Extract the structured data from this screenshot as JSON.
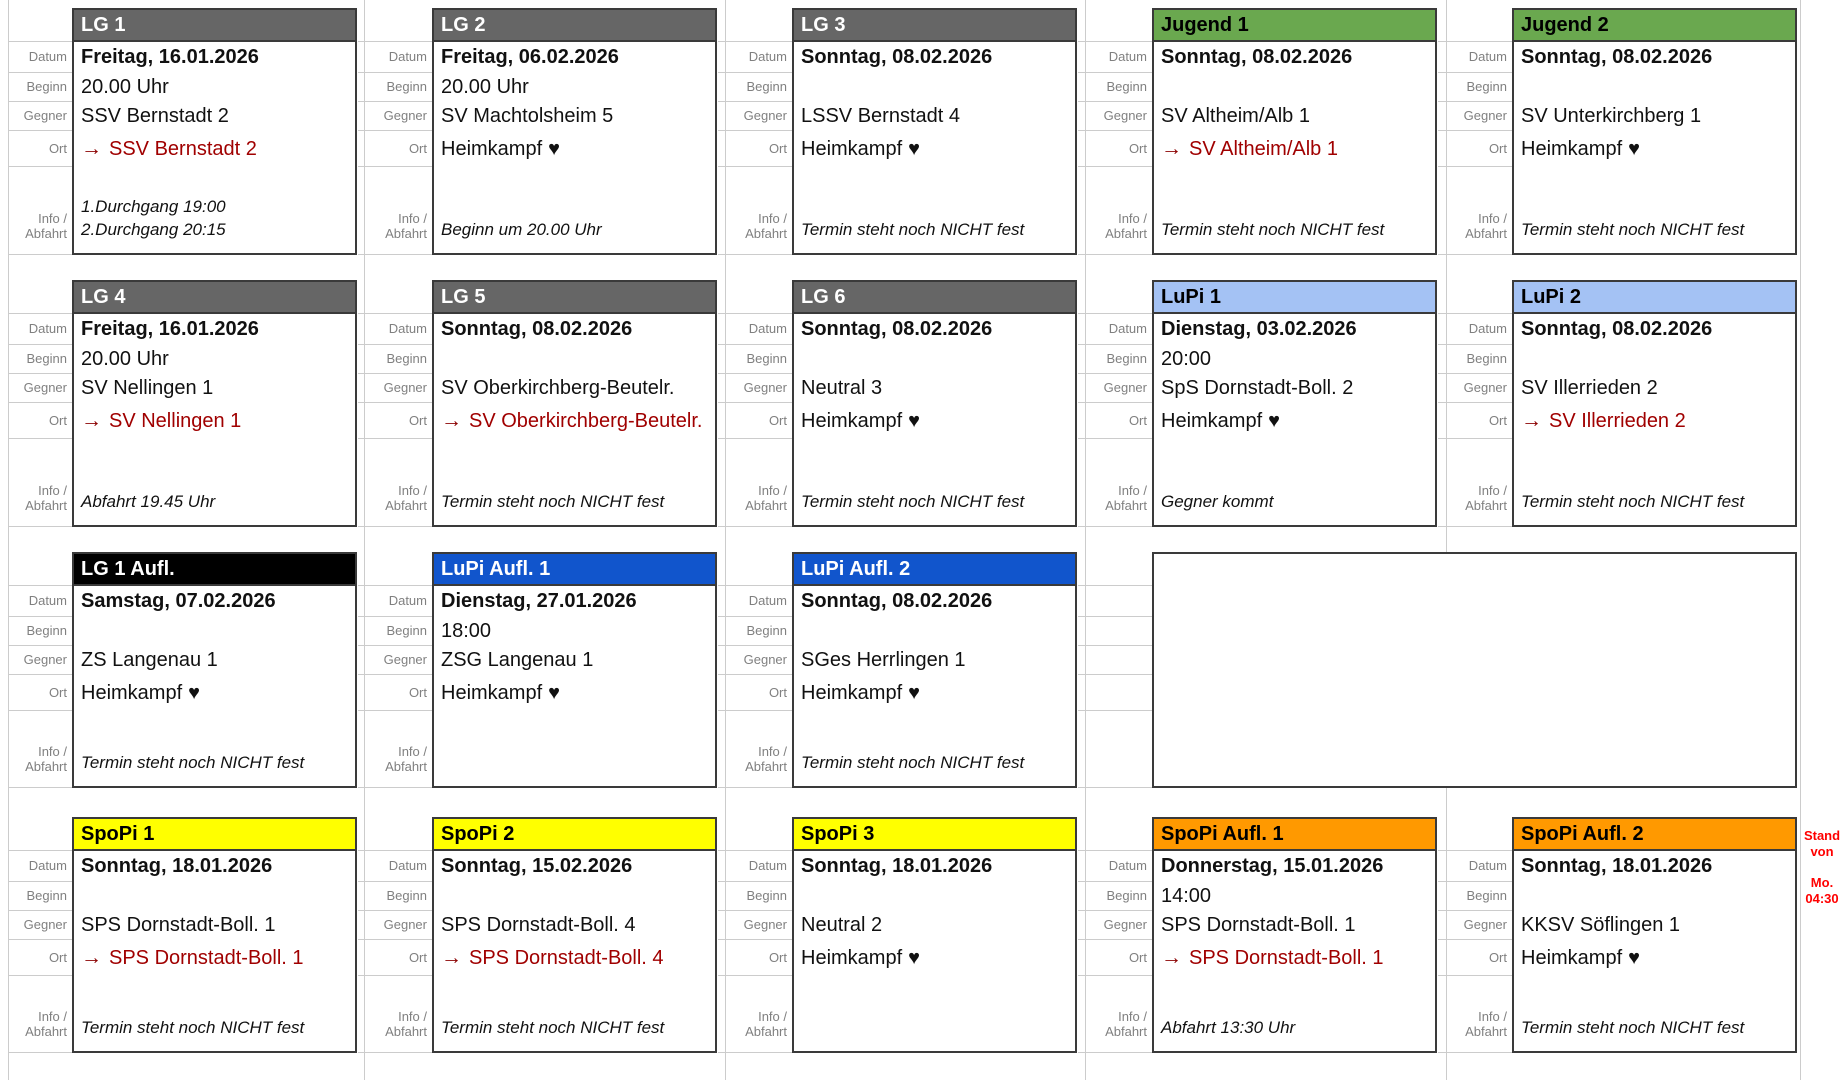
{
  "icons": {
    "arrow_right": "→",
    "heart": "♥"
  },
  "colors": {
    "gray": "#666666",
    "green": "#6aa84f",
    "lightblue": "#a4c2f4",
    "blue": "#1155cc",
    "black": "#000000",
    "yellow": "#ffff00",
    "orange": "#ff9900",
    "away_red": "#a00000",
    "stand_red": "#ff0000"
  },
  "gutter_labels": {
    "datum": "Datum",
    "beginn": "Beginn",
    "gegner": "Gegner",
    "ort": "Ort",
    "info_line1": "Info /",
    "info_line2": "Abfahrt"
  },
  "home_text": "Heimkampf",
  "stand_note": {
    "line1": "Stand von",
    "line2": "Mo. 04:30"
  },
  "cards": [
    {
      "col": 0,
      "row": 0,
      "title": "LG 1",
      "header_bg": "gray",
      "header_fg": "#ffffff",
      "datum": "Freitag, 16.01.2026",
      "beginn": "20.00 Uhr",
      "gegner": "SSV Bernstadt 2",
      "ort_type": "away",
      "ort_text": "SSV Bernstadt 2",
      "info": [
        "1.Durchgang 19:00",
        "2.Durchgang 20:15"
      ]
    },
    {
      "col": 1,
      "row": 0,
      "title": "LG 2",
      "header_bg": "gray",
      "header_fg": "#ffffff",
      "datum": "Freitag, 06.02.2026",
      "beginn": "20.00 Uhr",
      "gegner": "SV Machtolsheim 5",
      "ort_type": "home",
      "ort_text": "Heimkampf",
      "info": [
        "Beginn um 20.00 Uhr"
      ]
    },
    {
      "col": 2,
      "row": 0,
      "title": "LG 3",
      "header_bg": "gray",
      "header_fg": "#ffffff",
      "datum": "Sonntag, 08.02.2026",
      "beginn": "",
      "gegner": "LSSV Bernstadt 4",
      "ort_type": "home",
      "ort_text": "Heimkampf",
      "info": [
        "Termin steht noch NICHT fest"
      ]
    },
    {
      "col": 3,
      "row": 0,
      "title": "Jugend 1",
      "header_bg": "green",
      "header_fg": "#000000",
      "datum": "Sonntag, 08.02.2026",
      "beginn": "",
      "gegner": "SV Altheim/Alb 1",
      "ort_type": "away",
      "ort_text": "SV Altheim/Alb 1",
      "info": [
        "Termin steht noch NICHT fest"
      ]
    },
    {
      "col": 4,
      "row": 0,
      "title": "Jugend 2",
      "header_bg": "green",
      "header_fg": "#000000",
      "datum": "Sonntag, 08.02.2026",
      "beginn": "",
      "gegner": "SV Unterkirchberg 1",
      "ort_type": "home",
      "ort_text": "Heimkampf",
      "info": [
        "Termin steht noch NICHT fest"
      ]
    },
    {
      "col": 0,
      "row": 1,
      "title": "LG 4",
      "header_bg": "gray",
      "header_fg": "#ffffff",
      "datum": "Freitag, 16.01.2026",
      "beginn": "20.00 Uhr",
      "gegner": "SV Nellingen 1",
      "ort_type": "away",
      "ort_text": "SV Nellingen 1",
      "info": [
        "Abfahrt 19.45 Uhr"
      ]
    },
    {
      "col": 1,
      "row": 1,
      "title": "LG 5",
      "header_bg": "gray",
      "header_fg": "#ffffff",
      "datum": "Sonntag, 08.02.2026",
      "beginn": "",
      "gegner": "SV Oberkirchberg-Beutelr.",
      "ort_type": "away",
      "ort_text": "SV Oberkirchberg-Beutelr.",
      "info": [
        "Termin steht noch NICHT fest"
      ]
    },
    {
      "col": 2,
      "row": 1,
      "title": "LG 6",
      "header_bg": "gray",
      "header_fg": "#ffffff",
      "datum": "Sonntag, 08.02.2026",
      "beginn": "",
      "gegner": "Neutral 3",
      "ort_type": "home",
      "ort_text": "Heimkampf",
      "info": [
        "Termin steht noch NICHT fest"
      ]
    },
    {
      "col": 3,
      "row": 1,
      "title": "LuPi 1",
      "header_bg": "lightblue",
      "header_fg": "#000000",
      "datum": "Dienstag, 03.02.2026",
      "beginn": "20:00",
      "gegner": "SpS Dornstadt-Boll. 2",
      "ort_type": "home",
      "ort_text": "Heimkampf",
      "info": [
        "Gegner kommt"
      ]
    },
    {
      "col": 4,
      "row": 1,
      "title": "LuPi 2",
      "header_bg": "lightblue",
      "header_fg": "#000000",
      "datum": "Sonntag, 08.02.2026",
      "beginn": "",
      "gegner": "SV Illerrieden 2",
      "ort_type": "away",
      "ort_text": "SV Illerrieden 2",
      "info": [
        "Termin steht noch NICHT fest"
      ]
    },
    {
      "col": 0,
      "row": 2,
      "title": "LG 1 Aufl.",
      "header_bg": "black",
      "header_fg": "#ffffff",
      "datum": "Samstag, 07.02.2026",
      "beginn": "",
      "gegner": "ZS Langenau 1",
      "ort_type": "home",
      "ort_text": "Heimkampf",
      "info": [
        "Termin steht noch NICHT fest"
      ]
    },
    {
      "col": 1,
      "row": 2,
      "title": "LuPi Aufl. 1",
      "header_bg": "blue",
      "header_fg": "#ffffff",
      "datum": "Dienstag, 27.01.2026",
      "beginn": "18:00",
      "gegner": "ZSG Langenau 1",
      "ort_type": "home",
      "ort_text": "Heimkampf",
      "info": []
    },
    {
      "col": 2,
      "row": 2,
      "title": "LuPi Aufl. 2",
      "header_bg": "blue",
      "header_fg": "#ffffff",
      "datum": "Sonntag, 08.02.2026",
      "beginn": "",
      "gegner": "SGes Herrlingen 1",
      "ort_type": "home",
      "ort_text": "Heimkampf",
      "info": [
        "Termin steht noch NICHT fest"
      ]
    },
    {
      "col": 0,
      "row": 3,
      "title": "SpoPi 1",
      "header_bg": "yellow",
      "header_fg": "#000000",
      "datum": "Sonntag, 18.01.2026",
      "beginn": "",
      "gegner": "SPS Dornstadt-Boll. 1",
      "ort_type": "away",
      "ort_text": "SPS Dornstadt-Boll. 1",
      "info": [
        "Termin steht noch NICHT fest"
      ]
    },
    {
      "col": 1,
      "row": 3,
      "title": "SpoPi 2",
      "header_bg": "yellow",
      "header_fg": "#000000",
      "datum": "Sonntag, 15.02.2026",
      "beginn": "",
      "gegner": "SPS Dornstadt-Boll. 4",
      "ort_type": "away",
      "ort_text": "SPS Dornstadt-Boll. 4",
      "info": [
        "Termin steht noch NICHT fest"
      ]
    },
    {
      "col": 2,
      "row": 3,
      "title": "SpoPi 3",
      "header_bg": "yellow",
      "header_fg": "#000000",
      "datum": "Sonntag, 18.01.2026",
      "beginn": "",
      "gegner": "Neutral 2",
      "ort_type": "home",
      "ort_text": "Heimkampf",
      "info": []
    },
    {
      "col": 3,
      "row": 3,
      "title": "SpoPi Aufl. 1",
      "header_bg": "orange",
      "header_fg": "#000000",
      "datum": "Donnerstag, 15.01.2026",
      "beginn": "14:00",
      "gegner": "SPS Dornstadt-Boll. 1",
      "ort_type": "away",
      "ort_text": "SPS Dornstadt-Boll. 1",
      "info": [
        "Abfahrt 13:30 Uhr"
      ]
    },
    {
      "col": 4,
      "row": 3,
      "title": "SpoPi Aufl. 2",
      "header_bg": "orange",
      "header_fg": "#000000",
      "datum": "Sonntag, 18.01.2026",
      "beginn": "",
      "gegner": "KKSV Söflingen 1",
      "ort_type": "home",
      "ort_text": "Heimkampf",
      "info": [
        "Termin steht noch NICHT fest"
      ]
    }
  ],
  "empty_cell": {
    "row": 2,
    "col_start": 3,
    "col_span": 2
  }
}
